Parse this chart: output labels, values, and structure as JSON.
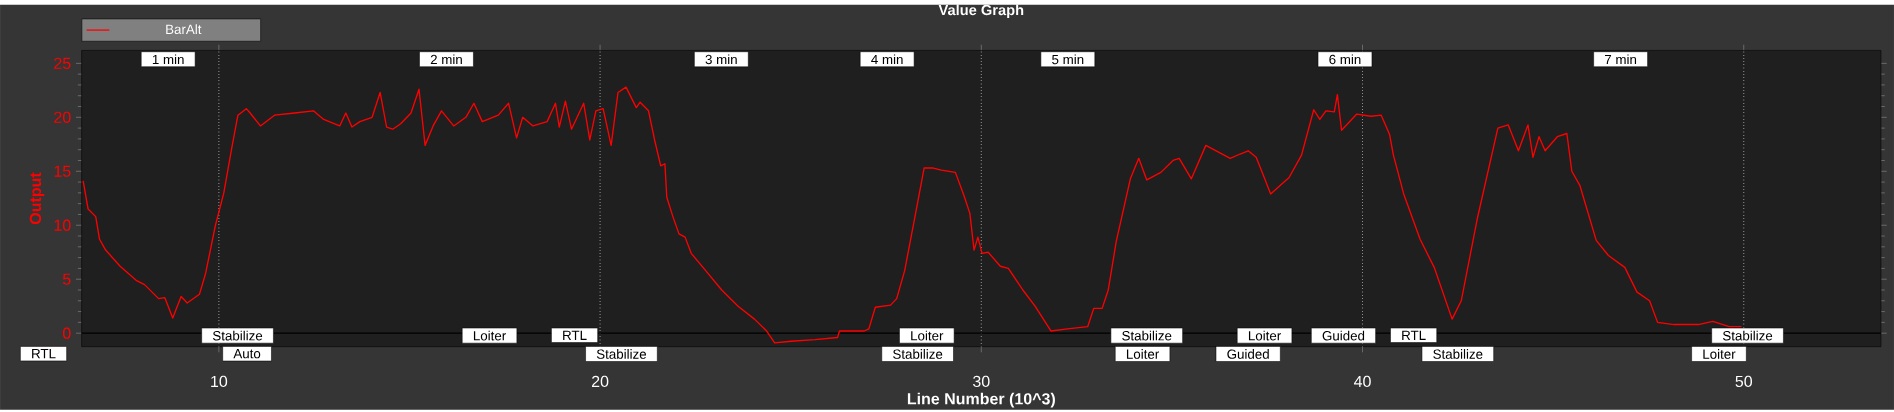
{
  "chart_data": {
    "type": "line",
    "title": "Value Graph",
    "xlabel": "Line Number (10^3)",
    "ylabel": "Output",
    "x": [
      6.44,
      6.57,
      6.77,
      6.87,
      7.03,
      7.41,
      7.83,
      8.05,
      8.42,
      8.58,
      8.79,
      9.01,
      9.17,
      9.49,
      9.65,
      9.91,
      10.13,
      10.34,
      10.5,
      10.72,
      10.82,
      11.09,
      11.46,
      11.99,
      12.48,
      12.75,
      13.17,
      13.33,
      13.49,
      13.7,
      14.02,
      14.23,
      14.4,
      14.56,
      14.77,
      15.04,
      15.25,
      15.41,
      15.62,
      15.84,
      16.16,
      16.48,
      16.69,
      16.91,
      17.33,
      17.6,
      17.81,
      17.97,
      18.24,
      18.61,
      18.83,
      18.93,
      19.09,
      19.25,
      19.57,
      19.73,
      19.89,
      20.08,
      20.29,
      20.47,
      20.68,
      20.95,
      21.05,
      21.27,
      21.43,
      21.59,
      21.7,
      21.75,
      21.91,
      22.07,
      22.23,
      22.39,
      22.77,
      23.19,
      23.62,
      24.05,
      24.37,
      24.58,
      25.01,
      25.64,
      26.23,
      26.28,
      26.93,
      27.05,
      27.22,
      27.62,
      27.78,
      27.99,
      28.26,
      28.5,
      28.74,
      28.95,
      29.32,
      29.54,
      29.7,
      29.81,
      29.91,
      30.02,
      30.18,
      30.5,
      30.71,
      31.09,
      31.41,
      31.83,
      32.26,
      32.79,
      32.95,
      33.17,
      33.33,
      33.54,
      33.91,
      34.13,
      34.34,
      34.71,
      35.03,
      35.19,
      35.51,
      35.89,
      36.21,
      36.53,
      36.79,
      37.0,
      37.21,
      37.38,
      37.59,
      37.97,
      38.07,
      38.4,
      38.72,
      38.88,
      39.04,
      39.26,
      39.34,
      39.45,
      39.85,
      40.22,
      40.49,
      40.71,
      40.81,
      41.08,
      41.51,
      41.88,
      42.35,
      42.59,
      43.01,
      43.55,
      43.82,
      44.09,
      44.34,
      44.47,
      44.63,
      44.79,
      45.11,
      45.36,
      45.49,
      45.7,
      46.13,
      46.45,
      46.88,
      47.2,
      47.53,
      47.74,
      48.17,
      48.81,
      49.19,
      49.62,
      49.94
    ],
    "series": [
      {
        "name": "BarAlt",
        "color": "#ff0000",
        "values": [
          14.1,
          11.5,
          10.8,
          8.7,
          7.7,
          6.2,
          4.9,
          4.5,
          3.2,
          3.3,
          1.4,
          3.4,
          2.8,
          3.6,
          5.5,
          10.0,
          13.0,
          17.2,
          20.2,
          20.8,
          20.4,
          19.2,
          20.2,
          20.4,
          20.6,
          19.8,
          19.2,
          20.4,
          19.1,
          19.6,
          20.0,
          22.3,
          19.1,
          18.9,
          19.4,
          20.4,
          22.6,
          17.4,
          19.2,
          20.6,
          19.2,
          20.0,
          21.3,
          19.6,
          20.2,
          21.3,
          18.1,
          20.0,
          19.2,
          19.6,
          21.3,
          19.1,
          21.5,
          18.9,
          21.3,
          17.9,
          20.6,
          20.8,
          17.4,
          22.3,
          22.8,
          20.9,
          21.4,
          20.6,
          17.9,
          15.5,
          15.7,
          12.6,
          10.8,
          9.2,
          8.9,
          7.4,
          5.8,
          4.0,
          2.5,
          1.3,
          0.2,
          -0.9,
          -0.75,
          -0.6,
          -0.4,
          0.2,
          0.2,
          0.4,
          2.4,
          2.6,
          3.2,
          5.8,
          10.8,
          15.3,
          15.3,
          15.1,
          14.9,
          12.8,
          11.1,
          7.7,
          8.9,
          7.4,
          7.5,
          6.2,
          6.0,
          4.0,
          2.5,
          0.2,
          0.4,
          0.6,
          2.3,
          2.3,
          4.0,
          8.5,
          14.3,
          16.2,
          14.2,
          14.9,
          16.0,
          16.2,
          14.3,
          17.4,
          16.8,
          16.2,
          16.6,
          16.9,
          16.3,
          14.8,
          12.9,
          14.1,
          14.4,
          16.5,
          20.7,
          19.8,
          20.6,
          20.5,
          22.1,
          18.8,
          20.3,
          20.1,
          20.2,
          18.4,
          16.5,
          12.9,
          8.7,
          6.1,
          1.3,
          3.0,
          10.6,
          19.0,
          19.3,
          16.9,
          19.3,
          16.3,
          18.2,
          16.9,
          18.2,
          18.5,
          15.0,
          13.7,
          8.6,
          7.2,
          6.1,
          3.8,
          3.0,
          1.0,
          0.8,
          0.8,
          1.1,
          0.6,
          0.6
        ]
      }
    ],
    "xlim": [
      6.4,
      53.6
    ],
    "ylim": [
      -1.25,
      26.2
    ],
    "xticks": [
      10,
      20,
      30,
      40,
      50
    ],
    "yticks": [
      0,
      5,
      10,
      15,
      20,
      25
    ],
    "grid": "x",
    "legend": "top left",
    "ref_lines": [
      {
        "axis": "y",
        "value": 0,
        "color": "#000000"
      }
    ],
    "annotations": [
      "1 min",
      "2 min",
      "3 min",
      "4 min",
      "5 min",
      "6 min",
      "7 min",
      "Stabilize",
      "Loiter",
      "RTL",
      "Loiter",
      "Stabilize",
      "Loiter",
      "Guided",
      "RTL",
      "Stabilize",
      "RTL",
      "Auto",
      "Stabilize",
      "Stabilize",
      "Loiter",
      "Guided",
      "Stabilize",
      "Loiter"
    ]
  }
}
